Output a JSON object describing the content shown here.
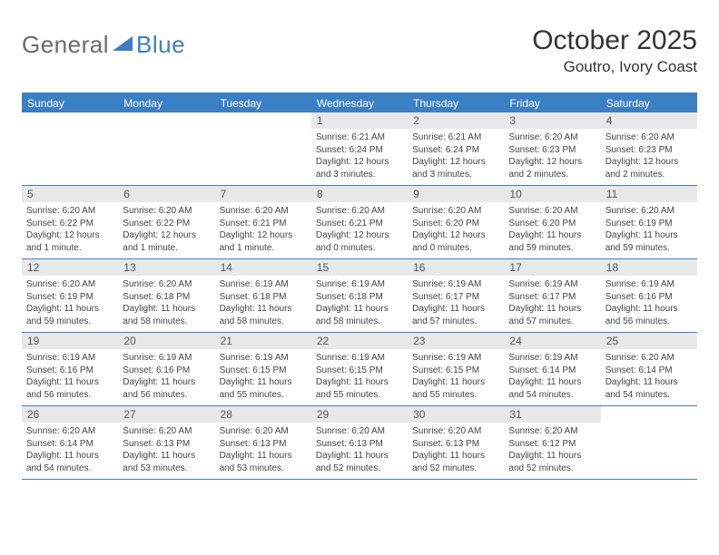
{
  "brand": {
    "part1": "General",
    "part2": "Blue"
  },
  "title": "October 2025",
  "location": "Goutro, Ivory Coast",
  "colors": {
    "accent": "#3b7fc4",
    "header_text": "#ffffff",
    "daynum_bg": "#e8e8e8",
    "text": "#333333",
    "body_text": "#444444",
    "logo_gray": "#6b6b6b"
  },
  "typography": {
    "title_fontsize": 30,
    "location_fontsize": 17,
    "dayheader_fontsize": 12,
    "daynum_fontsize": 12,
    "body_fontsize": 10
  },
  "day_names": [
    "Sunday",
    "Monday",
    "Tuesday",
    "Wednesday",
    "Thursday",
    "Friday",
    "Saturday"
  ],
  "weeks": [
    [
      {
        "n": "",
        "sr": "",
        "ss": "",
        "dl": ""
      },
      {
        "n": "",
        "sr": "",
        "ss": "",
        "dl": ""
      },
      {
        "n": "",
        "sr": "",
        "ss": "",
        "dl": ""
      },
      {
        "n": "1",
        "sr": "Sunrise: 6:21 AM",
        "ss": "Sunset: 6:24 PM",
        "dl": "Daylight: 12 hours and 3 minutes."
      },
      {
        "n": "2",
        "sr": "Sunrise: 6:21 AM",
        "ss": "Sunset: 6:24 PM",
        "dl": "Daylight: 12 hours and 3 minutes."
      },
      {
        "n": "3",
        "sr": "Sunrise: 6:20 AM",
        "ss": "Sunset: 6:23 PM",
        "dl": "Daylight: 12 hours and 2 minutes."
      },
      {
        "n": "4",
        "sr": "Sunrise: 6:20 AM",
        "ss": "Sunset: 6:23 PM",
        "dl": "Daylight: 12 hours and 2 minutes."
      }
    ],
    [
      {
        "n": "5",
        "sr": "Sunrise: 6:20 AM",
        "ss": "Sunset: 6:22 PM",
        "dl": "Daylight: 12 hours and 1 minute."
      },
      {
        "n": "6",
        "sr": "Sunrise: 6:20 AM",
        "ss": "Sunset: 6:22 PM",
        "dl": "Daylight: 12 hours and 1 minute."
      },
      {
        "n": "7",
        "sr": "Sunrise: 6:20 AM",
        "ss": "Sunset: 6:21 PM",
        "dl": "Daylight: 12 hours and 1 minute."
      },
      {
        "n": "8",
        "sr": "Sunrise: 6:20 AM",
        "ss": "Sunset: 6:21 PM",
        "dl": "Daylight: 12 hours and 0 minutes."
      },
      {
        "n": "9",
        "sr": "Sunrise: 6:20 AM",
        "ss": "Sunset: 6:20 PM",
        "dl": "Daylight: 12 hours and 0 minutes."
      },
      {
        "n": "10",
        "sr": "Sunrise: 6:20 AM",
        "ss": "Sunset: 6:20 PM",
        "dl": "Daylight: 11 hours and 59 minutes."
      },
      {
        "n": "11",
        "sr": "Sunrise: 6:20 AM",
        "ss": "Sunset: 6:19 PM",
        "dl": "Daylight: 11 hours and 59 minutes."
      }
    ],
    [
      {
        "n": "12",
        "sr": "Sunrise: 6:20 AM",
        "ss": "Sunset: 6:19 PM",
        "dl": "Daylight: 11 hours and 59 minutes."
      },
      {
        "n": "13",
        "sr": "Sunrise: 6:20 AM",
        "ss": "Sunset: 6:18 PM",
        "dl": "Daylight: 11 hours and 58 minutes."
      },
      {
        "n": "14",
        "sr": "Sunrise: 6:19 AM",
        "ss": "Sunset: 6:18 PM",
        "dl": "Daylight: 11 hours and 58 minutes."
      },
      {
        "n": "15",
        "sr": "Sunrise: 6:19 AM",
        "ss": "Sunset: 6:18 PM",
        "dl": "Daylight: 11 hours and 58 minutes."
      },
      {
        "n": "16",
        "sr": "Sunrise: 6:19 AM",
        "ss": "Sunset: 6:17 PM",
        "dl": "Daylight: 11 hours and 57 minutes."
      },
      {
        "n": "17",
        "sr": "Sunrise: 6:19 AM",
        "ss": "Sunset: 6:17 PM",
        "dl": "Daylight: 11 hours and 57 minutes."
      },
      {
        "n": "18",
        "sr": "Sunrise: 6:19 AM",
        "ss": "Sunset: 6:16 PM",
        "dl": "Daylight: 11 hours and 56 minutes."
      }
    ],
    [
      {
        "n": "19",
        "sr": "Sunrise: 6:19 AM",
        "ss": "Sunset: 6:16 PM",
        "dl": "Daylight: 11 hours and 56 minutes."
      },
      {
        "n": "20",
        "sr": "Sunrise: 6:19 AM",
        "ss": "Sunset: 6:16 PM",
        "dl": "Daylight: 11 hours and 56 minutes."
      },
      {
        "n": "21",
        "sr": "Sunrise: 6:19 AM",
        "ss": "Sunset: 6:15 PM",
        "dl": "Daylight: 11 hours and 55 minutes."
      },
      {
        "n": "22",
        "sr": "Sunrise: 6:19 AM",
        "ss": "Sunset: 6:15 PM",
        "dl": "Daylight: 11 hours and 55 minutes."
      },
      {
        "n": "23",
        "sr": "Sunrise: 6:19 AM",
        "ss": "Sunset: 6:15 PM",
        "dl": "Daylight: 11 hours and 55 minutes."
      },
      {
        "n": "24",
        "sr": "Sunrise: 6:19 AM",
        "ss": "Sunset: 6:14 PM",
        "dl": "Daylight: 11 hours and 54 minutes."
      },
      {
        "n": "25",
        "sr": "Sunrise: 6:20 AM",
        "ss": "Sunset: 6:14 PM",
        "dl": "Daylight: 11 hours and 54 minutes."
      }
    ],
    [
      {
        "n": "26",
        "sr": "Sunrise: 6:20 AM",
        "ss": "Sunset: 6:14 PM",
        "dl": "Daylight: 11 hours and 54 minutes."
      },
      {
        "n": "27",
        "sr": "Sunrise: 6:20 AM",
        "ss": "Sunset: 6:13 PM",
        "dl": "Daylight: 11 hours and 53 minutes."
      },
      {
        "n": "28",
        "sr": "Sunrise: 6:20 AM",
        "ss": "Sunset: 6:13 PM",
        "dl": "Daylight: 11 hours and 53 minutes."
      },
      {
        "n": "29",
        "sr": "Sunrise: 6:20 AM",
        "ss": "Sunset: 6:13 PM",
        "dl": "Daylight: 11 hours and 52 minutes."
      },
      {
        "n": "30",
        "sr": "Sunrise: 6:20 AM",
        "ss": "Sunset: 6:13 PM",
        "dl": "Daylight: 11 hours and 52 minutes."
      },
      {
        "n": "31",
        "sr": "Sunrise: 6:20 AM",
        "ss": "Sunset: 6:12 PM",
        "dl": "Daylight: 11 hours and 52 minutes."
      },
      {
        "n": "",
        "sr": "",
        "ss": "",
        "dl": ""
      }
    ]
  ]
}
